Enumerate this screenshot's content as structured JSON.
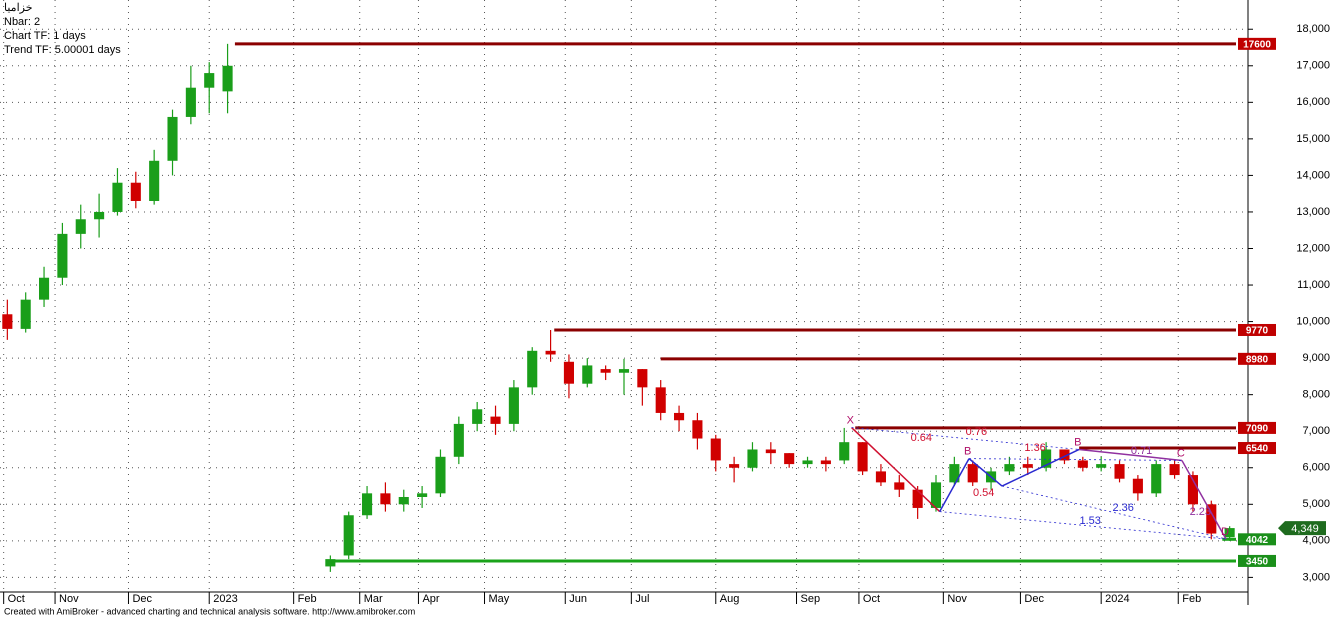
{
  "chart_data": {
    "type": "candlestick",
    "header": [
      "خزاميا",
      "Nbar: 2",
      "Chart TF: 1 days",
      "Trend TF: 5.00001 days"
    ],
    "footer": "Created with AmiBroker - advanced charting and technical analysis software. http://www.amibroker.com",
    "up_color": "#1a9e1a",
    "down_color": "#d00000",
    "xlim": [
      0,
      340
    ],
    "xticks": [
      {
        "value": 1,
        "label": "Oct"
      },
      {
        "value": 15,
        "label": "Nov"
      },
      {
        "value": 35,
        "label": "Dec"
      },
      {
        "value": 57,
        "label": "2023"
      },
      {
        "value": 80,
        "label": "Feb"
      },
      {
        "value": 98,
        "label": "Mar"
      },
      {
        "value": 114,
        "label": "Apr"
      },
      {
        "value": 132,
        "label": "May"
      },
      {
        "value": 154,
        "label": "Jun"
      },
      {
        "value": 172,
        "label": "Jul"
      },
      {
        "value": 195,
        "label": "Aug"
      },
      {
        "value": 217,
        "label": "Sep"
      },
      {
        "value": 234,
        "label": "Oct"
      },
      {
        "value": 257,
        "label": "Nov"
      },
      {
        "value": 278,
        "label": "Dec"
      },
      {
        "value": 300,
        "label": "2024"
      },
      {
        "value": 321,
        "label": "Feb"
      }
    ],
    "ylim": [
      2600,
      18800
    ],
    "yticks": [
      {
        "value": 3000,
        "label": "3,000"
      },
      {
        "value": 4000,
        "label": "4,000"
      },
      {
        "value": 5000,
        "label": "5,000"
      },
      {
        "value": 6000,
        "label": "6,000"
      },
      {
        "value": 7000,
        "label": "7,000"
      },
      {
        "value": 8000,
        "label": "8,000"
      },
      {
        "value": 9000,
        "label": "9,000"
      },
      {
        "value": 10000,
        "label": "10,000"
      },
      {
        "value": 11000,
        "label": "11,000"
      },
      {
        "value": 12000,
        "label": "12,000"
      },
      {
        "value": 13000,
        "label": "13,000"
      },
      {
        "value": 14000,
        "label": "14,000"
      },
      {
        "value": 15000,
        "label": "15,000"
      },
      {
        "value": 16000,
        "label": "16,000"
      },
      {
        "value": 17000,
        "label": "17,000"
      },
      {
        "value": 18000,
        "label": "18,000"
      }
    ],
    "grid": true,
    "x": [
      2,
      7,
      12,
      17,
      22,
      27,
      32,
      37,
      42,
      47,
      52,
      57,
      62,
      90,
      95,
      100,
      105,
      110,
      115,
      120,
      125,
      130,
      135,
      140,
      145,
      150,
      155,
      160,
      165,
      170,
      175,
      180,
      185,
      190,
      195,
      200,
      205,
      210,
      215,
      220,
      225,
      230,
      235,
      240,
      245,
      250,
      255,
      260,
      265,
      270,
      275,
      280,
      285,
      290,
      295,
      300,
      305,
      310,
      315,
      320,
      325,
      330,
      335
    ],
    "open": [
      10200,
      9800,
      10600,
      11200,
      12400,
      12800,
      13000,
      13800,
      13300,
      14400,
      15600,
      16400,
      16300,
      3300,
      3600,
      4700,
      5300,
      5000,
      5200,
      5300,
      6300,
      7200,
      7400,
      7200,
      8200,
      9200,
      8900,
      8300,
      8700,
      8600,
      8700,
      8200,
      7500,
      7300,
      6800,
      6100,
      6000,
      6500,
      6400,
      6100,
      6200,
      6200,
      6700,
      5900,
      5600,
      5400,
      4900,
      5600,
      6100,
      5600,
      5900,
      6100,
      6000,
      6500,
      6200,
      6000,
      6100,
      5700,
      5300,
      6100,
      5800,
      5000,
      4100
    ],
    "high": [
      10600,
      10800,
      11500,
      12700,
      13200,
      13500,
      14200,
      14100,
      14700,
      15800,
      17000,
      17100,
      17600,
      3600,
      4800,
      5500,
      5600,
      5400,
      5500,
      6500,
      7400,
      7800,
      7700,
      8400,
      9300,
      9770,
      9100,
      9000,
      8800,
      8980,
      8700,
      8400,
      7700,
      7500,
      6900,
      6300,
      6700,
      6700,
      6400,
      6300,
      6300,
      7090,
      6700,
      6100,
      5800,
      5500,
      5800,
      6300,
      6200,
      6000,
      6300,
      6300,
      6700,
      6500,
      6300,
      6300,
      6200,
      5800,
      6200,
      6200,
      5900,
      5100,
      4400
    ],
    "low": [
      9500,
      9700,
      10400,
      11000,
      12000,
      12300,
      12900,
      13100,
      13200,
      14000,
      15400,
      15700,
      15700,
      3150,
      3500,
      4600,
      4800,
      4800,
      4900,
      5200,
      6100,
      7000,
      6900,
      7000,
      8000,
      8900,
      7900,
      8200,
      8400,
      8000,
      7700,
      7300,
      7000,
      6500,
      5900,
      5600,
      5900,
      6100,
      6000,
      6000,
      5900,
      6100,
      5800,
      5500,
      5200,
      4600,
      4800,
      5500,
      5500,
      5400,
      5800,
      5800,
      5900,
      6100,
      5900,
      5900,
      5600,
      5100,
      5200,
      5700,
      4800,
      4042,
      4000
    ],
    "close": [
      9800,
      10600,
      11200,
      12400,
      12800,
      13000,
      13800,
      13300,
      14400,
      15600,
      16400,
      16800,
      17000,
      3500,
      4700,
      5300,
      5000,
      5200,
      5300,
      6300,
      7200,
      7600,
      7200,
      8200,
      9200,
      9100,
      8300,
      8800,
      8600,
      8700,
      8200,
      7500,
      7300,
      6800,
      6200,
      6000,
      6500,
      6400,
      6100,
      6200,
      6100,
      6700,
      5900,
      5600,
      5400,
      4900,
      5600,
      6100,
      5600,
      5900,
      6100,
      6000,
      6500,
      6200,
      6000,
      6100,
      5700,
      5300,
      6100,
      5800,
      5000,
      4200,
      4349
    ],
    "levels": [
      {
        "value": 17600,
        "from": 64,
        "color": "#8b0000",
        "label_color": "#c00000"
      },
      {
        "value": 9770,
        "from": 151,
        "color": "#8b0000",
        "label_color": "#c00000"
      },
      {
        "value": 8980,
        "from": 180,
        "color": "#8b0000",
        "label_color": "#c00000"
      },
      {
        "value": 7090,
        "from": 233,
        "color": "#8b0000",
        "label_color": "#c00000"
      },
      {
        "value": 6540,
        "from": 294,
        "color": "#8b0000",
        "label_color": "#c00000"
      },
      {
        "value": 4042,
        "from": 333,
        "color": "#1aa31a",
        "label_color": "#1a8f1a"
      },
      {
        "value": 3450,
        "from": 90,
        "color": "#1aa31a",
        "label_color": "#1a8f1a"
      }
    ],
    "last_price": {
      "value": 4349,
      "label": "4,349",
      "color": "#1e6b1e"
    },
    "pattern": {
      "color": "#2a2ad0",
      "points": [
        {
          "label": "X",
          "x": 232,
          "y": 7100
        },
        {
          "label": null,
          "x": 256,
          "y": 4800
        },
        {
          "label": "B",
          "x": 264,
          "y": 6250
        },
        {
          "label": null,
          "x": 273,
          "y": 5500
        },
        {
          "label": "B",
          "x": 294,
          "y": 6500
        },
        {
          "label": "C",
          "x": 322,
          "y": 6200
        },
        {
          "label": "D",
          "x": 334,
          "y": 4050
        }
      ]
    },
    "ratios": [
      {
        "text": "0.64",
        "x": 251,
        "y": 6813,
        "color": "#d01030"
      },
      {
        "text": "0.76",
        "x": 266,
        "y": 6977,
        "color": "#d01030"
      },
      {
        "text": "1.36",
        "x": 282,
        "y": 6540,
        "color": "#d01030"
      },
      {
        "text": "0.71",
        "x": 311,
        "y": 6457,
        "color": "#9030a0"
      },
      {
        "text": "0.54",
        "x": 268,
        "y": 5308,
        "color": "#d01030"
      },
      {
        "text": "2.36",
        "x": 306,
        "y": 4897,
        "color": "#2a2ad0"
      },
      {
        "text": "1.53",
        "x": 297,
        "y": 4542,
        "color": "#2a2ad0"
      },
      {
        "text": "2.23",
        "x": 327,
        "y": 4788,
        "color": "#9030a0"
      }
    ]
  }
}
